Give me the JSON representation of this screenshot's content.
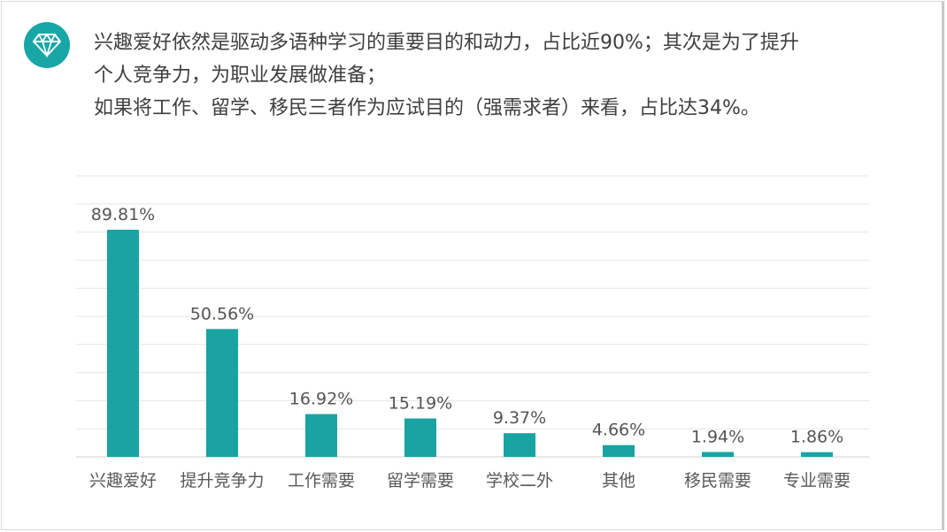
{
  "header": {
    "line1": "兴趣爱好依然是驱动多语种学习的重要目的和动力，占比近90%；其次是为了提升",
    "line2": "个人竞争力，为职业发展做准备；",
    "line3": "如果将工作、留学、移民三者作为应试目的（强需求者）来看，占比达34%。",
    "icon": "diamond-icon"
  },
  "colors": {
    "bar": "#1aa3a3",
    "accent": "#18a6a6",
    "grid": "#e6e6e6"
  },
  "chart_data": {
    "type": "bar",
    "categories": [
      "兴趣爱好",
      "提升竞争力",
      "工作需要",
      "留学需要",
      "学校二外",
      "其他",
      "移民需要",
      "专业需要"
    ],
    "values": [
      89.81,
      50.56,
      16.92,
      15.19,
      9.37,
      4.66,
      1.94,
      1.86
    ],
    "value_labels": [
      "89.81%",
      "50.56%",
      "16.92%",
      "15.19%",
      "9.37%",
      "4.66%",
      "1.94%",
      "1.86%"
    ],
    "ylim": [
      0,
      100
    ],
    "grid": true,
    "legend": "none"
  }
}
